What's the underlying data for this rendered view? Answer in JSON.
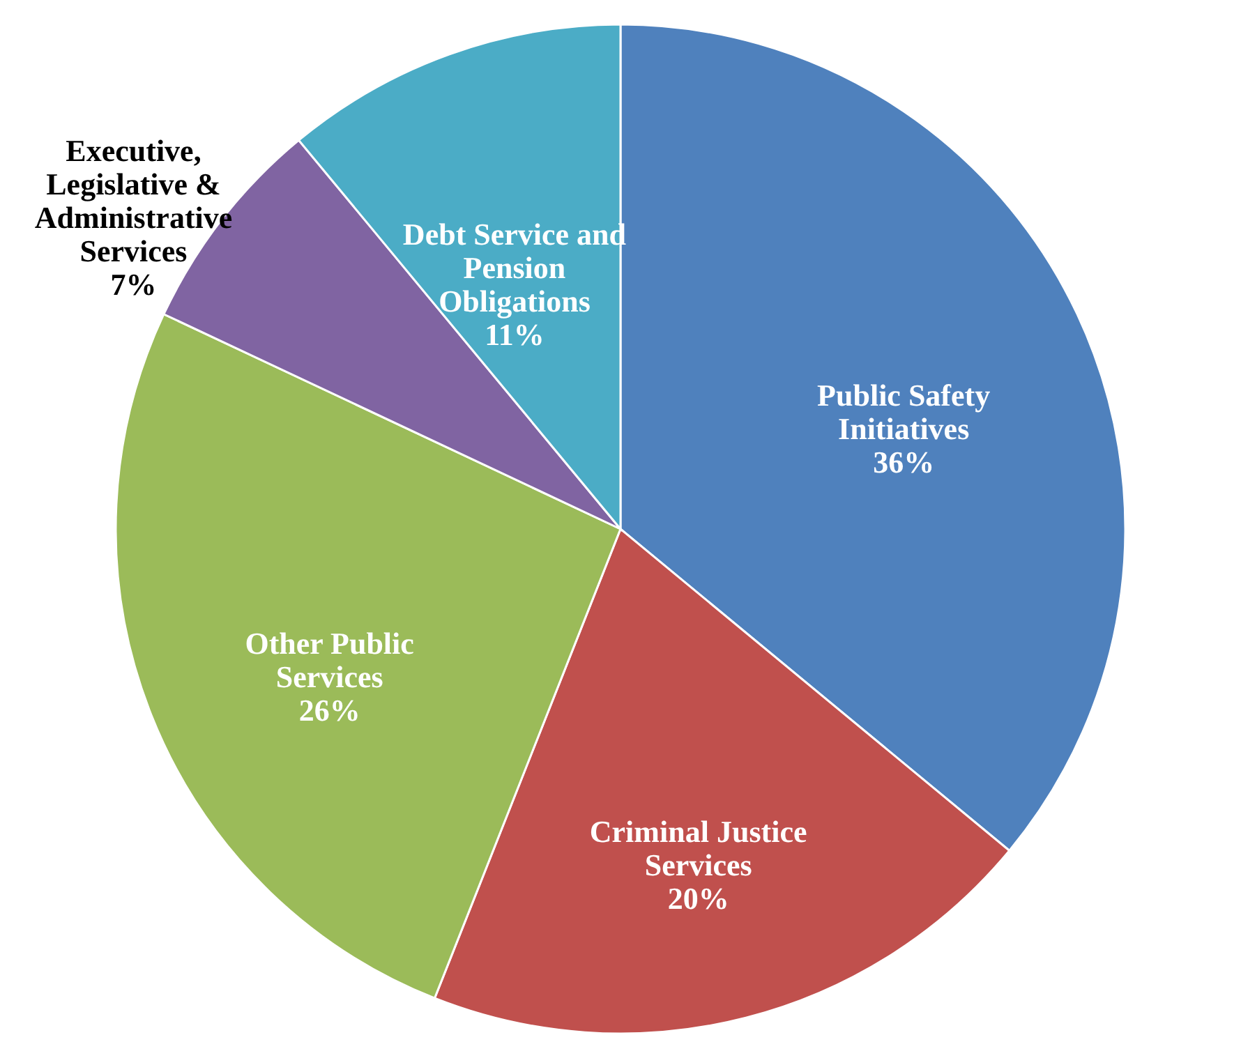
{
  "chart_data": {
    "type": "pie",
    "categories": [
      "Public Safety Initiatives",
      "Criminal Justice Services",
      "Other Public Services",
      "Executive, Legislative & Administrative Services",
      "Debt Service and Pension Obligations"
    ],
    "values": [
      36,
      20,
      26,
      7,
      11
    ],
    "value_labels": [
      "36%",
      "20%",
      "26%",
      "7%",
      "11%"
    ],
    "colors": [
      "#4f81bd",
      "#c0504d",
      "#9bbb59",
      "#8064a2",
      "#4bacc6"
    ]
  }
}
